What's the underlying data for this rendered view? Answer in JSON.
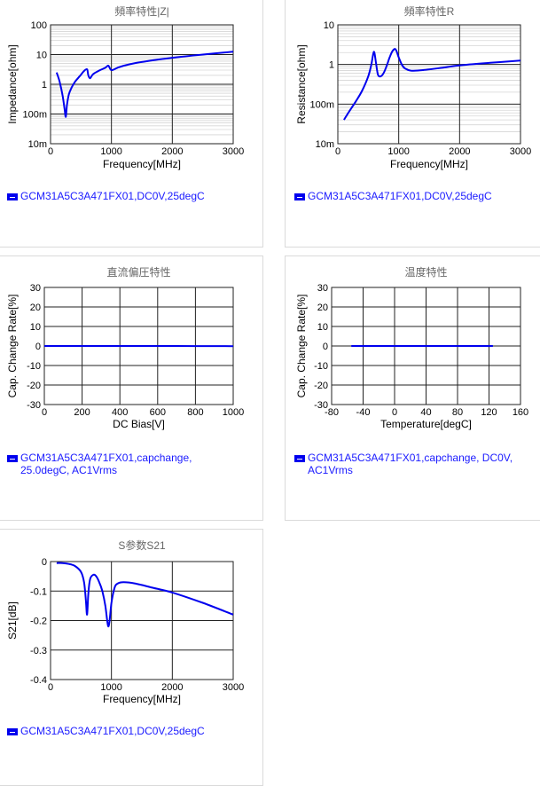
{
  "line_color": "#0000ee",
  "legend_color": "#1a1aff",
  "title_color": "#666666",
  "charts": [
    {
      "title": "頻率特性|Z|",
      "legend": "GCM31A5C3A471FX01,DC0V,25degC",
      "chart_data": {
        "type": "line",
        "title": "頻率特性|Z|",
        "xlabel": "Frequency[MHz]",
        "ylabel": "Impedance[ohm]",
        "xscale": "linear",
        "yscale": "log",
        "xlim": [
          0,
          3000
        ],
        "ylim": [
          0.01,
          100
        ],
        "xticks": [
          0,
          1000,
          2000,
          3000
        ],
        "xtick_labels": [
          "0",
          "1000",
          "2000",
          "3000"
        ],
        "yticks": [
          0.01,
          0.1,
          1,
          10,
          100
        ],
        "ytick_labels": [
          "10m",
          "100m",
          "1",
          "10",
          "100"
        ],
        "grid": true,
        "series": [
          {
            "name": "GCM31A5C3A471FX01,DC0V,25degC",
            "x": [
              100,
              150,
              200,
              230,
              250,
              270,
              300,
              350,
              400,
              450,
              500,
              550,
              600,
              620,
              650,
              700,
              800,
              900,
              950,
              1000,
              1100,
              1200,
              1400,
              1700,
              2000,
              2500,
              3000
            ],
            "y": [
              2.5,
              1.2,
              0.4,
              0.15,
              0.08,
              0.2,
              0.45,
              0.8,
              1.2,
              1.6,
              2.1,
              2.8,
              3.2,
              2.0,
              1.6,
              2.2,
              2.9,
              3.6,
              4.2,
              3.0,
              3.6,
              4.2,
              5.2,
              6.5,
              7.8,
              10.0,
              12.5
            ]
          }
        ]
      }
    },
    {
      "title": "頻率特性R",
      "legend": "GCM31A5C3A471FX01,DC0V,25degC",
      "chart_data": {
        "type": "line",
        "title": "頻率特性R",
        "xlabel": "Frequency[MHz]",
        "ylabel": "Resistance[ohm]",
        "xscale": "linear",
        "yscale": "log",
        "xlim": [
          0,
          3000
        ],
        "ylim": [
          0.01,
          10
        ],
        "xticks": [
          0,
          1000,
          2000,
          3000
        ],
        "xtick_labels": [
          "0",
          "1000",
          "2000",
          "3000"
        ],
        "yticks": [
          0.01,
          0.1,
          1,
          10
        ],
        "ytick_labels": [
          "10m",
          "100m",
          "1",
          "10"
        ],
        "grid": true,
        "series": [
          {
            "name": "GCM31A5C3A471FX01,DC0V,25degC",
            "x": [
              100,
              200,
              300,
              400,
              500,
              550,
              580,
              600,
              630,
              660,
              700,
              750,
              800,
              850,
              900,
              950,
              1000,
              1050,
              1100,
              1200,
              1400,
              1700,
              2000,
              2500,
              3000
            ],
            "y": [
              0.04,
              0.07,
              0.12,
              0.22,
              0.5,
              1.0,
              1.8,
              2.0,
              1.0,
              0.55,
              0.5,
              0.6,
              0.9,
              1.5,
              2.2,
              2.4,
              1.5,
              1.0,
              0.8,
              0.7,
              0.72,
              0.82,
              0.95,
              1.1,
              1.25
            ]
          }
        ]
      }
    },
    {
      "title": "直流偏圧特性",
      "legend": "GCM31A5C3A471FX01,capchange,\n25.0degC, AC1Vrms",
      "chart_data": {
        "type": "line",
        "title": "直流偏圧特性",
        "xlabel": "DC Bias[V]",
        "ylabel": "Cap. Change Rate[%]",
        "xscale": "linear",
        "yscale": "linear",
        "xlim": [
          0,
          1000
        ],
        "ylim": [
          -30,
          30
        ],
        "xticks": [
          0,
          200,
          400,
          600,
          800,
          1000
        ],
        "xtick_labels": [
          "0",
          "200",
          "400",
          "600",
          "800",
          "1000"
        ],
        "yticks": [
          -30,
          -20,
          -10,
          0,
          10,
          20,
          30
        ],
        "ytick_labels": [
          "-30",
          "-20",
          "-10",
          "0",
          "10",
          "20",
          "30"
        ],
        "grid": true,
        "series": [
          {
            "name": "GCM31A5C3A471FX01,capchange, 25.0degC, AC1Vrms",
            "x": [
              0,
              200,
              400,
              600,
              800,
              1000
            ],
            "y": [
              0,
              0,
              0,
              0,
              -0.05,
              -0.1
            ]
          }
        ]
      }
    },
    {
      "title": "温度特性",
      "legend": "GCM31A5C3A471FX01,capchange, DC0V,\nAC1Vrms",
      "chart_data": {
        "type": "line",
        "title": "温度特性",
        "xlabel": "Temperature[degC]",
        "ylabel": "Cap. Change Rate[%]",
        "xscale": "linear",
        "yscale": "linear",
        "xlim": [
          -80,
          160
        ],
        "ylim": [
          -30,
          30
        ],
        "xticks": [
          -80,
          -40,
          0,
          40,
          80,
          120,
          160
        ],
        "xtick_labels": [
          "-80",
          "-40",
          "0",
          "40",
          "80",
          "120",
          "160"
        ],
        "yticks": [
          -30,
          -20,
          -10,
          0,
          10,
          20,
          30
        ],
        "ytick_labels": [
          "-30",
          "-20",
          "-10",
          "0",
          "10",
          "20",
          "30"
        ],
        "grid": true,
        "series": [
          {
            "name": "GCM31A5C3A471FX01,capchange, DC0V, AC1Vrms",
            "x": [
              -55,
              0,
              25,
              85,
              125
            ],
            "y": [
              0,
              0,
              0,
              0,
              0
            ]
          }
        ]
      }
    },
    {
      "title": "S参数S21",
      "legend": "GCM31A5C3A471FX01,DC0V,25degC",
      "chart_data": {
        "type": "line",
        "title": "S参数S21",
        "xlabel": "Frequency[MHz]",
        "ylabel": "S21[dB]",
        "xscale": "linear",
        "yscale": "linear",
        "xlim": [
          0,
          3000
        ],
        "ylim": [
          -0.4,
          0
        ],
        "xticks": [
          0,
          1000,
          2000,
          3000
        ],
        "xtick_labels": [
          "0",
          "1000",
          "2000",
          "3000"
        ],
        "yticks": [
          -0.4,
          -0.3,
          -0.2,
          -0.1,
          0
        ],
        "ytick_labels": [
          "-0.4",
          "-0.3",
          "-0.2",
          "-0.1",
          "0"
        ],
        "grid": true,
        "series": [
          {
            "name": "GCM31A5C3A471FX01,DC0V,25degC",
            "x": [
              100,
              200,
              300,
              400,
              500,
              550,
              580,
              600,
              620,
              650,
              700,
              750,
              800,
              850,
              900,
              930,
              950,
              970,
              1000,
              1050,
              1100,
              1200,
              1400,
              1700,
              2000,
              2500,
              3000
            ],
            "y": [
              -0.005,
              -0.005,
              -0.008,
              -0.015,
              -0.035,
              -0.07,
              -0.13,
              -0.18,
              -0.11,
              -0.06,
              -0.045,
              -0.05,
              -0.07,
              -0.1,
              -0.15,
              -0.2,
              -0.22,
              -0.2,
              -0.14,
              -0.09,
              -0.075,
              -0.07,
              -0.075,
              -0.09,
              -0.105,
              -0.14,
              -0.18
            ]
          }
        ]
      }
    }
  ]
}
